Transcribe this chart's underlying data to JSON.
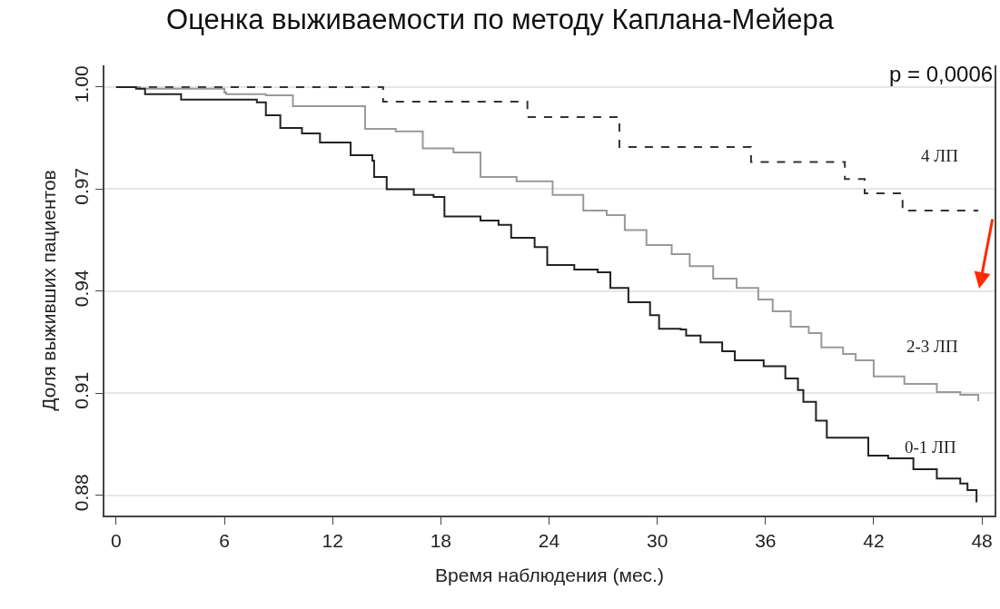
{
  "chart_data": {
    "type": "step",
    "title": "Оценка выживаемости по методу Каплана-Мейера",
    "xlabel": "Время наблюдения (мес.)",
    "ylabel": "Доля выживших пациентов",
    "annotations": [
      "p = 0,0006"
    ],
    "xlim": [
      -0.65,
      48.7
    ],
    "xticks": [
      0,
      6,
      12,
      18,
      24,
      30,
      36,
      42,
      48
    ],
    "ylim": [
      0.8741,
      1.0064
    ],
    "yticks": [
      {
        "value": 0.88,
        "label": "0.88"
      },
      {
        "value": 0.91,
        "label": "0.91"
      },
      {
        "value": 0.94,
        "label": "0.94"
      },
      {
        "value": 0.97,
        "label": "0.97"
      },
      {
        "value": 1.0,
        "label": "1.00"
      }
    ],
    "grid": "y",
    "legend": false,
    "series": [
      {
        "name": "4 ЛП",
        "color": "#333333",
        "line_style": "dashed",
        "x": [
          0,
          14.8,
          22.8,
          27.9,
          35.2,
          40.4,
          41.5,
          43.6,
          47.8
        ],
        "values": [
          1.0,
          0.9957,
          0.9912,
          0.9824,
          0.978,
          0.973,
          0.9688,
          0.9637,
          0.9637
        ]
      },
      {
        "name": "2-3 ЛП",
        "color": "#999999",
        "line_style": "solid",
        "x": [
          0,
          1.3,
          6.0,
          6.1,
          8.3,
          9.8,
          12.5,
          13.8,
          15.5,
          17.0,
          18.7,
          20.2,
          22.2,
          24.2,
          25.9,
          27.2,
          28.2,
          29.4,
          30.8,
          31.8,
          33.1,
          34.4,
          35.6,
          36.4,
          37.4,
          38.4,
          39.1,
          40.3,
          41.0,
          42.0,
          43.7,
          45.5,
          46.8,
          47.8
        ],
        "values": [
          1.0,
          0.9995,
          0.9984,
          0.9979,
          0.9976,
          0.9944,
          0.9944,
          0.9877,
          0.987,
          0.982,
          0.9808,
          0.9736,
          0.9723,
          0.9683,
          0.9637,
          0.9624,
          0.958,
          0.9536,
          0.9509,
          0.9474,
          0.9437,
          0.941,
          0.9376,
          0.9341,
          0.9296,
          0.9277,
          0.9235,
          0.9216,
          0.9197,
          0.915,
          0.9128,
          0.9104,
          0.9096,
          0.9077
        ]
      },
      {
        "name": "0-1 ЛП",
        "color": "#222222",
        "line_style": "solid",
        "x": [
          0,
          1.1,
          1.6,
          3.6,
          7.4,
          7.8,
          8.3,
          9.1,
          10.3,
          11.3,
          12.3,
          13.0,
          14.2,
          14.3,
          15.0,
          16.5,
          17.6,
          18.2,
          20.2,
          21.2,
          21.9,
          23.2,
          23.9,
          25.4,
          26.7,
          27.4,
          28.4,
          29.6,
          30.1,
          31.3,
          31.6,
          32.4,
          33.6,
          34.3,
          35.9,
          37.1,
          37.8,
          38.1,
          38.8,
          39.4,
          41.7,
          42.8,
          44.2,
          45.5,
          46.8,
          47.2,
          47.7
        ],
        "values": [
          1.0,
          0.9995,
          0.9979,
          0.9963,
          0.9963,
          0.9955,
          0.9917,
          0.988,
          0.9864,
          0.9837,
          0.9837,
          0.98,
          0.9784,
          0.9736,
          0.97,
          0.9683,
          0.9677,
          0.962,
          0.9608,
          0.9595,
          0.9557,
          0.953,
          0.9477,
          0.9464,
          0.9456,
          0.941,
          0.9368,
          0.933,
          0.929,
          0.9288,
          0.927,
          0.925,
          0.9224,
          0.9197,
          0.918,
          0.9144,
          0.911,
          0.9075,
          0.902,
          0.897,
          0.8917,
          0.8909,
          0.8877,
          0.885,
          0.8835,
          0.8816,
          0.878
        ]
      }
    ]
  }
}
